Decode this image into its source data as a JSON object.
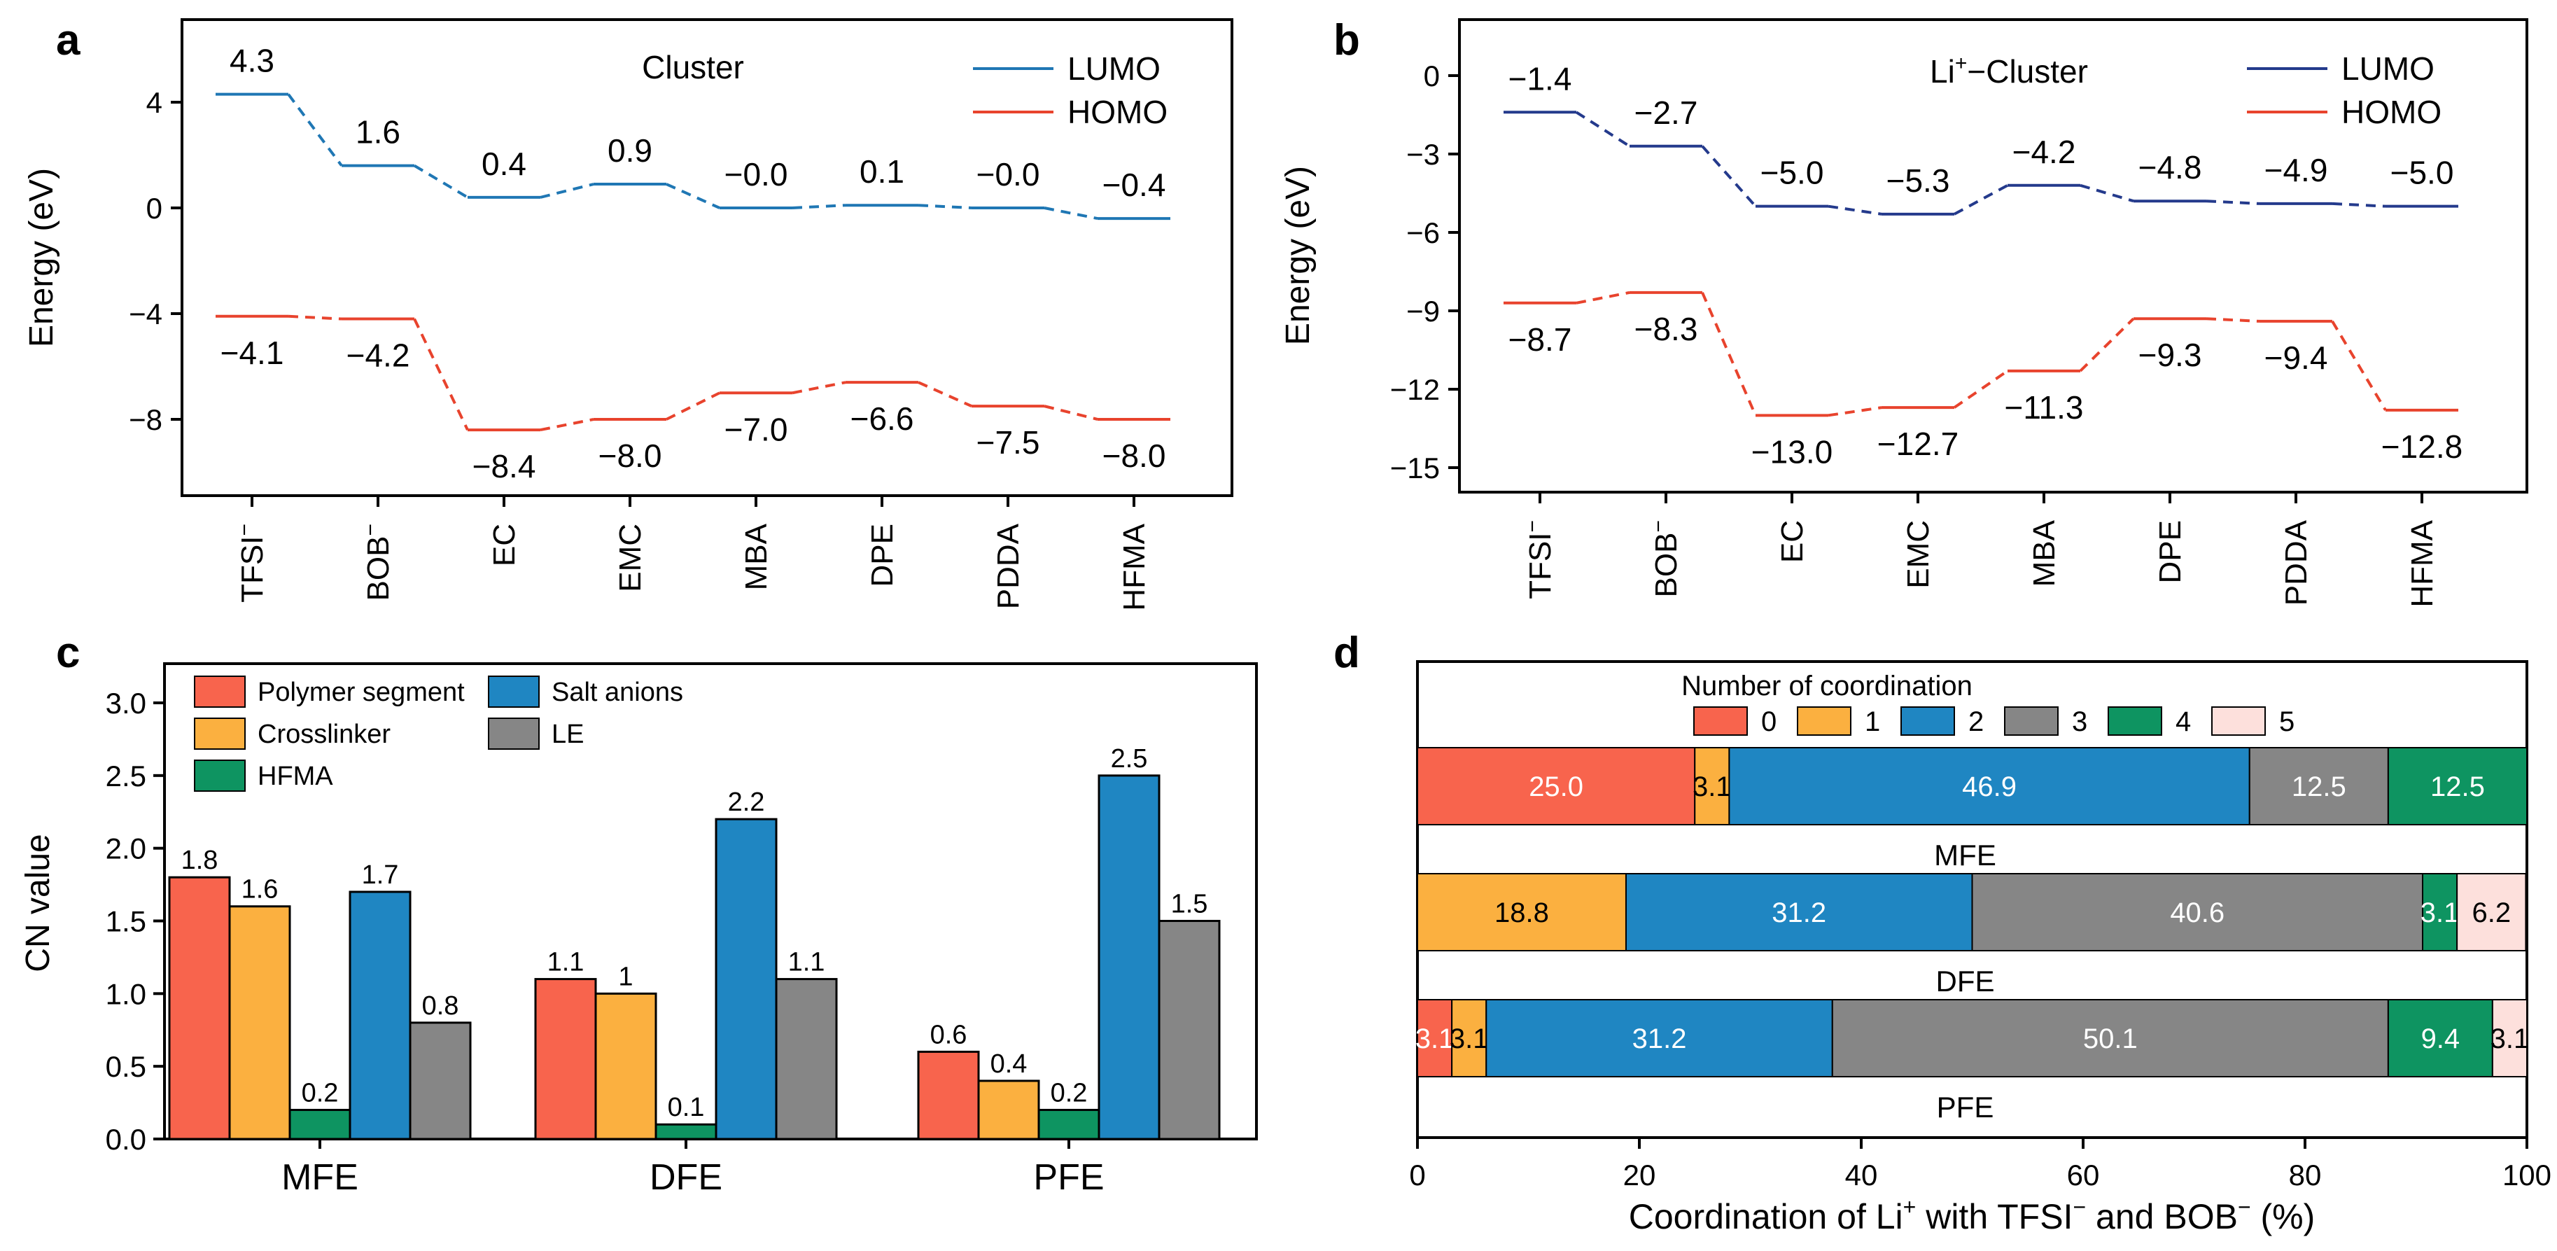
{
  "panel_labels": [
    "a",
    "b",
    "c",
    "d"
  ],
  "colors": {
    "lumo_a": "#1f77b4",
    "homo": "#e8432d",
    "lumo_b": "#243a8c",
    "c_series": [
      "#f8644d",
      "#fbb040",
      "#0e9461",
      "#1f86c2",
      "#868686"
    ],
    "d_levels": [
      "#f8644d",
      "#fbb040",
      "#1f86c2",
      "#868686",
      "#0e9461",
      "#fde0dc"
    ]
  },
  "chart_data": [
    {
      "type": "line",
      "panel": "a",
      "title": "Cluster",
      "xlabel": "",
      "ylabel": "Energy (eV)",
      "ylim": [
        -11,
        6.5
      ],
      "yticks": [
        4,
        0,
        -4,
        -8
      ],
      "yticklabels": [
        "4",
        "0",
        "−4",
        "−8"
      ],
      "categories": [
        "TFSI",
        "BOB",
        "EC",
        "EMC",
        "MBA",
        "DPE",
        "PDDA",
        "HFMA"
      ],
      "category_superscripts": [
        "−",
        "−",
        "",
        "",
        "",
        "",
        "",
        ""
      ],
      "series": [
        {
          "name": "LUMO",
          "values": [
            4.3,
            1.6,
            0.4,
            0.9,
            0.0,
            0.1,
            0.0,
            -0.4
          ],
          "labels": [
            "4.3",
            "1.6",
            "0.4",
            "0.9",
            "−0.0",
            "0.1",
            "−0.0",
            "−0.4"
          ]
        },
        {
          "name": "HOMO",
          "values": [
            -4.1,
            -4.2,
            -8.4,
            -8.0,
            -7.0,
            -6.6,
            -7.5,
            -8.0
          ],
          "labels": [
            "−4.1",
            "−4.2",
            "−8.4",
            "−8.0",
            "−7.0",
            "−6.6",
            "−7.5",
            "−8.0"
          ]
        }
      ]
    },
    {
      "type": "line",
      "panel": "b",
      "title": "Li+−Cluster",
      "title_parts": [
        "Li",
        "+",
        "−Cluster"
      ],
      "xlabel": "",
      "ylabel": "Energy (eV)",
      "ylim": [
        -16,
        1.5
      ],
      "yticks": [
        0,
        -3,
        -6,
        -9,
        -12,
        -15
      ],
      "yticklabels": [
        "0",
        "−3",
        "−6",
        "−9",
        "−12",
        "−15"
      ],
      "categories": [
        "TFSI",
        "BOB",
        "EC",
        "EMC",
        "MBA",
        "DPE",
        "PDDA",
        "HFMA"
      ],
      "category_superscripts": [
        "−",
        "−",
        "",
        "",
        "",
        "",
        "",
        ""
      ],
      "series": [
        {
          "name": "LUMO",
          "values": [
            -1.4,
            -2.7,
            -5.0,
            -5.3,
            -4.2,
            -4.8,
            -4.9,
            -5.0
          ],
          "labels": [
            "−1.4",
            "−2.7",
            "−5.0",
            "−5.3",
            "−4.2",
            "−4.8",
            "−4.9",
            "−5.0"
          ]
        },
        {
          "name": "HOMO",
          "values": [
            -8.7,
            -8.3,
            -13.0,
            -12.7,
            -11.3,
            -9.3,
            -9.4,
            -12.8
          ],
          "labels": [
            "−8.7",
            "−8.3",
            "−13.0",
            "−12.7",
            "−11.3",
            "−9.3",
            "−9.4",
            "−12.8"
          ]
        }
      ]
    },
    {
      "type": "bar",
      "panel": "c",
      "xlabel": "",
      "ylabel": "CN value",
      "ylim": [
        0,
        3.25
      ],
      "yticks": [
        0,
        0.5,
        1,
        1.5,
        2,
        2.5,
        3
      ],
      "yticklabels": [
        "0.0",
        "0.5",
        "1.0",
        "1.5",
        "2.0",
        "2.5",
        "3.0"
      ],
      "categories": [
        "MFE",
        "DFE",
        "PFE"
      ],
      "legend": [
        "Polymer segment",
        "Crosslinker",
        "HFMA",
        "Salt anions",
        "LE"
      ],
      "series": [
        {
          "name": "Polymer segment",
          "values": [
            1.8,
            1.1,
            0.6
          ],
          "labels": [
            "1.8",
            "1.1",
            "0.6"
          ]
        },
        {
          "name": "Crosslinker",
          "values": [
            1.6,
            1.0,
            0.4
          ],
          "labels": [
            "1.6",
            "1",
            "0.4"
          ]
        },
        {
          "name": "HFMA",
          "values": [
            0.2,
            0.1,
            0.2
          ],
          "labels": [
            "0.2",
            "0.1",
            "0.2"
          ]
        },
        {
          "name": "Salt anions",
          "values": [
            1.7,
            2.2,
            2.5
          ],
          "labels": [
            "1.7",
            "2.2",
            "2.5"
          ]
        },
        {
          "name": "LE",
          "values": [
            0.8,
            1.1,
            1.5
          ],
          "labels": [
            "0.8",
            "1.1",
            "1.5"
          ]
        }
      ]
    },
    {
      "type": "bar",
      "orientation": "horizontal-stacked",
      "panel": "d",
      "legend_title": "Number of coordination",
      "legend": [
        "0",
        "1",
        "2",
        "3",
        "4",
        "5"
      ],
      "xlabel": "Coordination of Li+ with TFSI− and BOB− (%)",
      "xlabel_parts": [
        "Coordination of Li",
        "+",
        " with TFSI",
        "−",
        " and BOB",
        "−",
        " (%)"
      ],
      "xlim": [
        0,
        100
      ],
      "xticks": [
        0,
        20,
        40,
        60,
        80,
        100
      ],
      "xticklabels": [
        "0",
        "20",
        "40",
        "60",
        "80",
        "100"
      ],
      "categories": [
        "MFE",
        "DFE",
        "PFE"
      ],
      "rows": [
        {
          "name": "MFE",
          "values": [
            25.0,
            3.1,
            46.9,
            12.5,
            12.5,
            0
          ],
          "labels": [
            "25.0",
            "3.1",
            "46.9",
            "12.5",
            "12.5",
            ""
          ]
        },
        {
          "name": "DFE",
          "values": [
            0,
            18.8,
            31.2,
            40.6,
            3.1,
            6.2
          ],
          "labels": [
            "",
            "18.8",
            "31.2",
            "40.6",
            "3.1",
            "6.2"
          ]
        },
        {
          "name": "PFE",
          "values": [
            3.1,
            3.1,
            31.2,
            50.1,
            9.4,
            3.1
          ],
          "labels": [
            "3.1",
            "3.1",
            "31.2",
            "50.1",
            "9.4",
            "3.1"
          ]
        }
      ]
    }
  ]
}
